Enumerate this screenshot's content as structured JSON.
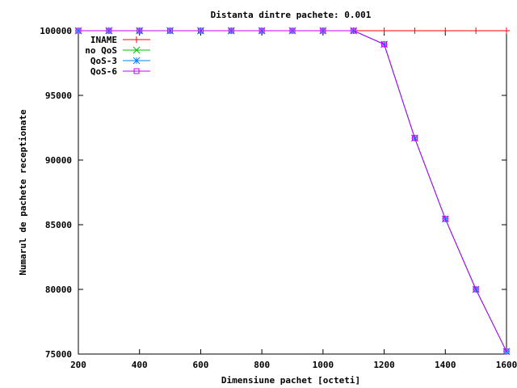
{
  "chart_data": {
    "type": "line",
    "title": "Distanta dintre pachete: 0.001",
    "xlabel": "Dimensiune pachet [octeti]",
    "ylabel": "Numarul de pachete receptionate",
    "xlim": [
      200,
      1600
    ],
    "ylim": [
      75000,
      100000
    ],
    "x_ticks": [
      200,
      400,
      600,
      800,
      1000,
      1200,
      1400,
      1600
    ],
    "y_ticks": [
      75000,
      80000,
      85000,
      90000,
      95000,
      100000
    ],
    "grid": false,
    "legend_position": "top-left",
    "series": [
      {
        "name": "INAME",
        "color": "#ff0000",
        "marker": "plus",
        "x": [
          200,
          300,
          400,
          500,
          600,
          700,
          800,
          900,
          1000,
          1100,
          1200,
          1300,
          1400,
          1500,
          1600
        ],
        "y": [
          100000,
          100000,
          100000,
          100000,
          100000,
          100000,
          100000,
          100000,
          100000,
          100000,
          100000,
          100000,
          100000,
          100000,
          100000
        ]
      },
      {
        "name": "no QoS",
        "color": "#00c000",
        "marker": "cross",
        "x": [
          200,
          300,
          400,
          500,
          600,
          700,
          800,
          900,
          1000,
          1100,
          1200,
          1300,
          1400,
          1500,
          1600
        ],
        "y": [
          100000,
          100000,
          100000,
          100000,
          100000,
          100000,
          100000,
          100000,
          100000,
          100000,
          98950,
          91700,
          85450,
          80000,
          75200
        ]
      },
      {
        "name": "QoS-3",
        "color": "#0080ff",
        "marker": "star",
        "x": [
          200,
          300,
          400,
          500,
          600,
          700,
          800,
          900,
          1000,
          1100,
          1200,
          1300,
          1400,
          1500,
          1600
        ],
        "y": [
          100000,
          100000,
          100000,
          100000,
          100000,
          100000,
          100000,
          100000,
          100000,
          100000,
          98950,
          91700,
          85450,
          80000,
          75200
        ]
      },
      {
        "name": "QoS-6",
        "color": "#c000ff",
        "marker": "square",
        "x": [
          200,
          300,
          400,
          500,
          600,
          700,
          800,
          900,
          1000,
          1100,
          1200,
          1300,
          1400,
          1500,
          1600
        ],
        "y": [
          100000,
          100000,
          100000,
          100000,
          100000,
          100000,
          100000,
          100000,
          100000,
          100000,
          98950,
          91700,
          85450,
          80000,
          75200
        ]
      }
    ]
  }
}
